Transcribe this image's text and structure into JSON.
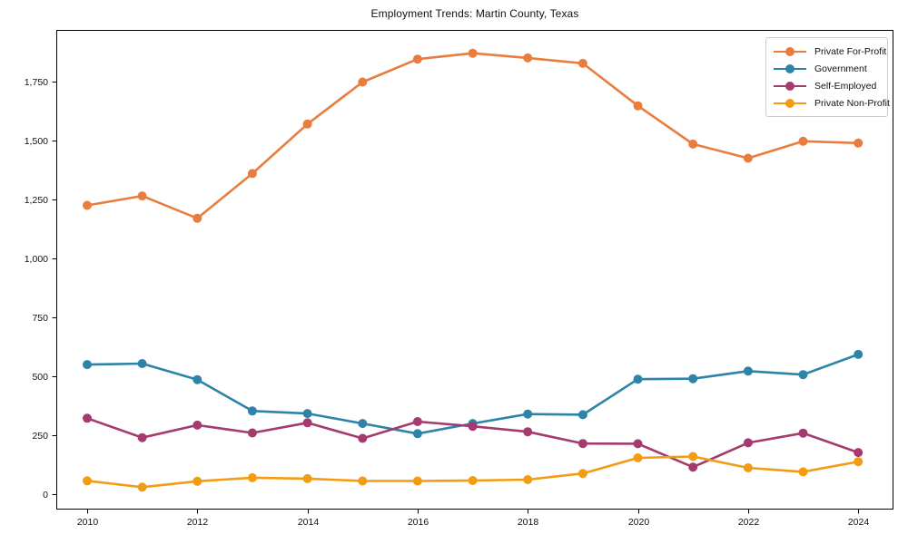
{
  "chart_data": {
    "type": "line",
    "title": "Employment Trends: Martin County, Texas",
    "xlabel": "",
    "ylabel": "",
    "grid": false,
    "marker": "circle",
    "legend_position": "upper right",
    "x": [
      2010,
      2011,
      2012,
      2013,
      2014,
      2015,
      2016,
      2017,
      2018,
      2019,
      2020,
      2021,
      2022,
      2023,
      2024
    ],
    "series": [
      {
        "name": "Private For-Profit",
        "color": "#E87D3E",
        "values": [
          1225,
          1265,
          1170,
          1360,
          1570,
          1748,
          1845,
          1870,
          1850,
          1827,
          1647,
          1485,
          1425,
          1497,
          1489
        ]
      },
      {
        "name": "Government",
        "color": "#2E84A8",
        "values": [
          550,
          554,
          486,
          353,
          342,
          300,
          257,
          300,
          340,
          337,
          488,
          490,
          522,
          507,
          593
        ]
      },
      {
        "name": "Self-Employed",
        "color": "#A53A6F",
        "values": [
          322,
          240,
          293,
          260,
          303,
          237,
          308,
          288,
          265,
          215,
          214,
          115,
          218,
          259,
          177
        ]
      },
      {
        "name": "Private Non-Profit",
        "color": "#F39C12",
        "values": [
          57,
          30,
          55,
          70,
          66,
          56,
          56,
          58,
          62,
          88,
          154,
          160,
          112,
          95,
          138
        ]
      }
    ],
    "xticks": {
      "values": [
        2010,
        2012,
        2014,
        2016,
        2018,
        2020,
        2022,
        2024
      ],
      "labels": [
        "2010",
        "2012",
        "2014",
        "2016",
        "2018",
        "2020",
        "2022",
        "2024"
      ]
    },
    "yticks": {
      "values": [
        0,
        250,
        500,
        750,
        1000,
        1250,
        1500,
        1750
      ],
      "labels": [
        "0",
        "250",
        "500",
        "750",
        "1,000",
        "1,250",
        "1,500",
        "1,750"
      ]
    },
    "xlim": [
      2009.44,
      2024.64
    ],
    "ylim": [
      -65,
      1969
    ],
    "axis_color": "#000000",
    "background_color": "#ffffff"
  }
}
